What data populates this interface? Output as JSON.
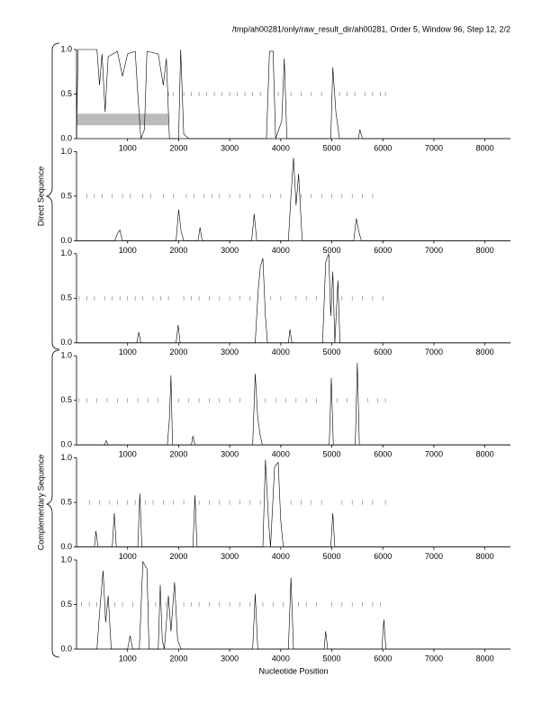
{
  "title": "/tmp/ah00281/only/raw_result_dir/ah00281, Order 5, Window 96, Step 12, 2/2",
  "x_label": "Nucleotide Position",
  "groups": [
    "Direct Sequence",
    "Complementary Sequence"
  ],
  "chart_data": [
    {
      "type": "line",
      "x": [
        0,
        30,
        400,
        450,
        500,
        560,
        620,
        800,
        900,
        1000,
        1150,
        1200,
        1260,
        1330,
        1380,
        1600,
        1700,
        1760,
        1820,
        2000,
        2040,
        2100,
        2200,
        3720,
        3780,
        3850,
        3900,
        4020,
        4070,
        4120,
        4980,
        5020,
        5080,
        5150,
        5520,
        5550,
        5600,
        8500
      ],
      "series": [
        {
          "color": "#000000",
          "values": [
            0,
            1,
            1,
            0.6,
            0.95,
            0.3,
            0.92,
            0.98,
            0.7,
            0.95,
            0.98,
            0.5,
            0,
            0.1,
            0.98,
            0.95,
            0.6,
            0.9,
            0,
            0,
            1,
            0.05,
            0,
            0,
            0.98,
            0.98,
            0,
            0.2,
            0.9,
            0,
            0,
            0.8,
            0.3,
            0,
            0,
            0.1,
            0,
            0
          ]
        }
      ],
      "stop_positions": [
        1800,
        1900,
        2100,
        2250,
        2400,
        2550,
        2700,
        2850,
        3000,
        3150,
        3300,
        3450,
        3600,
        3950,
        4200,
        4400,
        4600,
        4800,
        5150,
        5300,
        5450,
        5650,
        5800,
        5950,
        6050
      ],
      "band": {
        "x": [
          0,
          1800
        ],
        "y": [
          0.15,
          0.28
        ],
        "color": "#bbbbbb"
      },
      "xlim": [
        0,
        8500
      ],
      "xticks": [
        1000,
        2000,
        3000,
        4000,
        5000,
        6000,
        7000,
        8000
      ],
      "ylim": [
        0,
        1
      ],
      "yticks": [
        {
          "value": 0,
          "label": "0.0"
        },
        {
          "value": 0.5,
          "label": "0.5"
        },
        {
          "value": 1,
          "label": "1.0"
        }
      ]
    },
    {
      "type": "line",
      "x": [
        0,
        750,
        800,
        850,
        900,
        1950,
        2000,
        2050,
        2100,
        2380,
        2420,
        2460,
        3430,
        3480,
        3530,
        4150,
        4200,
        4250,
        4300,
        4350,
        4420,
        5430,
        5480,
        5530,
        5580,
        8500
      ],
      "series": [
        {
          "color": "#000000",
          "values": [
            0,
            0,
            0.08,
            0.12,
            0,
            0,
            0.35,
            0.1,
            0,
            0,
            0.15,
            0,
            0,
            0.3,
            0,
            0,
            0.5,
            0.93,
            0.4,
            0.75,
            0,
            0,
            0.25,
            0.1,
            0,
            0
          ]
        }
      ],
      "stop_positions": [
        200,
        350,
        500,
        700,
        900,
        1050,
        1300,
        1450,
        1700,
        1900,
        2150,
        2300,
        2500,
        2650,
        2800,
        3000,
        3200,
        3400,
        3650,
        3800,
        4000,
        4400,
        4600,
        4800,
        5000,
        5200,
        5400,
        5600,
        5800
      ],
      "xlim": [
        0,
        8500
      ],
      "xticks": [
        1000,
        2000,
        3000,
        4000,
        5000,
        6000,
        7000,
        8000
      ],
      "ylim": [
        0,
        1
      ],
      "yticks": [
        {
          "value": 0,
          "label": "0.0"
        },
        {
          "value": 0.5,
          "label": "0.5"
        },
        {
          "value": 1,
          "label": "1.0"
        }
      ]
    },
    {
      "type": "line",
      "x": [
        0,
        1180,
        1220,
        1260,
        1950,
        1990,
        2030,
        3500,
        3560,
        3600,
        3650,
        3700,
        3740,
        4150,
        4180,
        4220,
        4820,
        4880,
        4940,
        4980,
        5020,
        5060,
        5120,
        5160,
        8500
      ],
      "series": [
        {
          "color": "#000000",
          "values": [
            0,
            0,
            0.12,
            0,
            0,
            0.2,
            0,
            0,
            0.6,
            0.85,
            0.95,
            0.3,
            0,
            0,
            0.15,
            0,
            0,
            0.9,
            1,
            0.3,
            0.8,
            0,
            0.7,
            0,
            0
          ]
        }
      ],
      "stop_positions": [
        50,
        200,
        350,
        550,
        700,
        850,
        1000,
        1150,
        1300,
        1500,
        1650,
        1800,
        2100,
        2250,
        2400,
        2600,
        2800,
        3000,
        3200,
        3400,
        3800,
        4000,
        4300,
        4500,
        4700,
        5200,
        5400,
        5600,
        5800,
        6000
      ],
      "xlim": [
        0,
        8500
      ],
      "xticks": [
        1000,
        2000,
        3000,
        4000,
        5000,
        6000,
        7000,
        8000
      ],
      "ylim": [
        0,
        1
      ],
      "yticks": [
        {
          "value": 0,
          "label": "0.0"
        },
        {
          "value": 0.5,
          "label": "0.5"
        },
        {
          "value": 1,
          "label": "1.0"
        }
      ]
    },
    {
      "type": "line",
      "x": [
        0,
        550,
        580,
        620,
        1780,
        1820,
        1850,
        1880,
        2250,
        2280,
        2320,
        3450,
        3500,
        3550,
        3600,
        3640,
        4950,
        4990,
        5030,
        5460,
        5500,
        5540,
        8500
      ],
      "series": [
        {
          "color": "#000000",
          "values": [
            0,
            0,
            0.05,
            0,
            0,
            0.3,
            0.78,
            0,
            0,
            0.1,
            0,
            0,
            0.8,
            0.3,
            0.1,
            0,
            0,
            0.75,
            0,
            0,
            0.92,
            0,
            0
          ]
        }
      ],
      "stop_positions": [
        50,
        200,
        400,
        600,
        800,
        1000,
        1200,
        1400,
        1600,
        2000,
        2200,
        2400,
        2600,
        2800,
        3000,
        3200,
        3700,
        3900,
        4100,
        4300,
        4500,
        4700,
        5100,
        5300,
        5700,
        5900,
        6050
      ],
      "xlim": [
        0,
        8500
      ],
      "xticks": [
        1000,
        2000,
        3000,
        4000,
        5000,
        6000,
        7000,
        8000
      ],
      "ylim": [
        0,
        1
      ],
      "yticks": [
        {
          "value": 0,
          "label": "0.0"
        },
        {
          "value": 0.5,
          "label": "0.5"
        },
        {
          "value": 1,
          "label": "1.0"
        }
      ]
    },
    {
      "type": "line",
      "x": [
        0,
        350,
        380,
        420,
        700,
        740,
        780,
        1200,
        1240,
        1280,
        2280,
        2320,
        2360,
        3650,
        3700,
        3760,
        3800,
        3880,
        3950,
        4000,
        4050,
        4980,
        5020,
        5060,
        8500
      ],
      "series": [
        {
          "color": "#000000",
          "values": [
            0,
            0,
            0.18,
            0,
            0,
            0.38,
            0,
            0,
            0.6,
            0,
            0,
            0.58,
            0,
            0,
            0.98,
            0.3,
            0,
            0.9,
            0.95,
            0.3,
            0,
            0,
            0.38,
            0,
            0
          ]
        }
      ],
      "stop_positions": [
        250,
        450,
        650,
        800,
        1000,
        1150,
        1350,
        1500,
        1700,
        1900,
        2100,
        2400,
        2600,
        2800,
        3000,
        3200,
        3400,
        3600,
        4200,
        4400,
        4600,
        4800,
        5200,
        5400,
        5600,
        5800,
        6050
      ],
      "xlim": [
        0,
        8500
      ],
      "xticks": [
        1000,
        2000,
        3000,
        4000,
        5000,
        6000,
        7000,
        8000
      ],
      "ylim": [
        0,
        1
      ],
      "yticks": [
        {
          "value": 0,
          "label": "0.0"
        },
        {
          "value": 0.5,
          "label": "0.5"
        },
        {
          "value": 1,
          "label": "1.0"
        }
      ]
    },
    {
      "type": "line",
      "x": [
        0,
        400,
        450,
        520,
        570,
        620,
        680,
        1000,
        1050,
        1100,
        1230,
        1300,
        1380,
        1420,
        1600,
        1640,
        1680,
        1720,
        1800,
        1850,
        1920,
        1980,
        2050,
        3450,
        3500,
        3550,
        4150,
        4200,
        4250,
        4850,
        4880,
        4920,
        5980,
        6020,
        6060,
        8500
      ],
      "series": [
        {
          "color": "#000000",
          "values": [
            0,
            0,
            0.4,
            0.88,
            0.3,
            0.6,
            0,
            0,
            0.15,
            0,
            0,
            0.98,
            0.9,
            0,
            0,
            0.72,
            0.1,
            0,
            0.6,
            0.2,
            0.75,
            0.1,
            0,
            0,
            0.62,
            0,
            0,
            0.8,
            0,
            0,
            0.2,
            0,
            0,
            0.33,
            0,
            0
          ]
        }
      ],
      "stop_positions": [
        100,
        250,
        400,
        600,
        750,
        900,
        1100,
        1400,
        1550,
        1750,
        2100,
        2250,
        2400,
        2600,
        2800,
        3000,
        3200,
        3400,
        3650,
        3850,
        4050,
        4350,
        4500,
        4700,
        5000,
        5200,
        5400,
        5600,
        5800,
        5950
      ],
      "xlim": [
        0,
        8500
      ],
      "xticks": [
        1000,
        2000,
        3000,
        4000,
        5000,
        6000,
        7000,
        8000
      ],
      "ylim": [
        0,
        1
      ],
      "yticks": [
        {
          "value": 0,
          "label": "0.0"
        },
        {
          "value": 0.5,
          "label": "0.5"
        },
        {
          "value": 1,
          "label": "1.0"
        }
      ]
    }
  ]
}
